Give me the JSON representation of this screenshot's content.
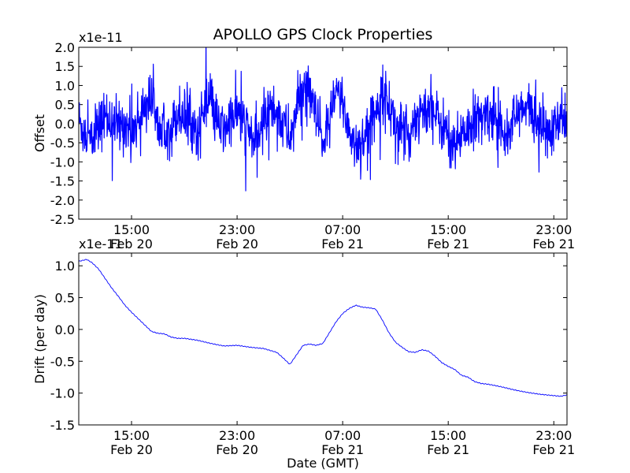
{
  "chart_data": [
    {
      "type": "line",
      "title": "APOLLO GPS Clock Properties",
      "ylabel": "Offset",
      "xlabel": "",
      "scale_label": "x1e-11",
      "ylim": [
        -2.5,
        2.0
      ],
      "xlim": [
        11.0,
        48.0
      ],
      "yticks": [
        -2.5,
        -2.0,
        -1.5,
        -1.0,
        -0.5,
        0.0,
        0.5,
        1.0,
        1.5,
        2.0
      ],
      "ytick_labels": [
        "-2.5",
        "-2.0",
        "-1.5",
        "-1.0",
        "-0.5",
        "0.0",
        "0.5",
        "1.0",
        "1.5",
        "2.0"
      ],
      "xticks": [
        15,
        23,
        31,
        39,
        47
      ],
      "xtick_labels": [
        [
          "15:00",
          "Feb 20"
        ],
        [
          "23:00",
          "Feb 20"
        ],
        [
          "07:00",
          "Feb 21"
        ],
        [
          "15:00",
          "Feb 21"
        ],
        [
          "23:00",
          "Feb 21"
        ]
      ],
      "series": [
        {
          "name": "offset",
          "color": "#0000ff",
          "noise_amp": 0.35,
          "x": [
            11.0,
            11.5,
            12.0,
            12.5,
            13.0,
            13.5,
            14.0,
            14.5,
            15.0,
            15.5,
            16.0,
            16.5,
            17.0,
            17.5,
            18.0,
            18.5,
            19.0,
            19.5,
            20.0,
            20.5,
            21.0,
            21.5,
            22.0,
            22.5,
            23.0,
            23.5,
            24.0,
            24.5,
            25.0,
            25.5,
            26.0,
            26.5,
            27.0,
            27.5,
            28.0,
            28.5,
            29.0,
            29.5,
            30.0,
            30.5,
            31.0,
            31.5,
            32.0,
            32.5,
            33.0,
            33.5,
            34.0,
            34.5,
            35.0,
            35.5,
            36.0,
            36.5,
            37.0,
            37.5,
            38.0,
            38.5,
            39.0,
            39.5,
            40.0,
            40.5,
            41.0,
            41.5,
            42.0,
            42.5,
            43.0,
            43.5,
            44.0,
            44.5,
            45.0,
            45.5,
            46.0,
            46.5,
            47.0,
            47.5,
            48.0
          ],
          "values": [
            0.1,
            -0.3,
            -0.5,
            -0.1,
            0.2,
            0.1,
            -0.1,
            0.0,
            -0.2,
            0.1,
            0.5,
            0.6,
            0.3,
            0.0,
            -0.2,
            0.3,
            0.2,
            0.1,
            -0.3,
            0.4,
            0.5,
            0.0,
            -0.2,
            0.1,
            0.3,
            0.0,
            -0.3,
            -0.5,
            0.1,
            0.4,
            0.3,
            0.0,
            -0.4,
            0.3,
            1.1,
            0.8,
            0.1,
            -0.5,
            0.0,
            0.8,
            0.6,
            -0.2,
            -0.6,
            -0.4,
            -0.2,
            0.4,
            0.8,
            0.5,
            0.0,
            -0.2,
            -0.4,
            0.2,
            0.4,
            0.3,
            0.2,
            0.0,
            -0.3,
            -0.6,
            -0.3,
            -0.1,
            0.0,
            0.1,
            0.3,
            0.2,
            0.0,
            -0.2,
            0.1,
            0.3,
            0.4,
            0.2,
            0.0,
            -0.3,
            -0.2,
            0.1,
            0.1
          ]
        }
      ]
    },
    {
      "type": "line",
      "title": "",
      "ylabel": "Drift (per day)",
      "xlabel": "Date (GMT)",
      "scale_label": "x1e-11",
      "ylim": [
        -1.5,
        1.2
      ],
      "xlim": [
        11.0,
        48.0
      ],
      "yticks": [
        -1.5,
        -1.0,
        -0.5,
        0.0,
        0.5,
        1.0
      ],
      "ytick_labels": [
        "-1.5",
        "-1.0",
        "-0.5",
        "0.0",
        "0.5",
        "1.0"
      ],
      "xticks": [
        15,
        23,
        31,
        39,
        47
      ],
      "xtick_labels": [
        [
          "15:00",
          "Feb 20"
        ],
        [
          "23:00",
          "Feb 20"
        ],
        [
          "07:00",
          "Feb 21"
        ],
        [
          "15:00",
          "Feb 21"
        ],
        [
          "23:00",
          "Feb 21"
        ]
      ],
      "series": [
        {
          "name": "drift",
          "color": "#0000ff",
          "noise_amp": 0.0,
          "x": [
            11.0,
            11.6,
            12.0,
            12.5,
            13.0,
            13.5,
            14.0,
            14.5,
            15.0,
            15.5,
            16.0,
            16.5,
            17.0,
            17.5,
            18.0,
            18.5,
            19.0,
            20.0,
            21.0,
            22.0,
            23.0,
            24.0,
            25.0,
            25.5,
            26.0,
            26.5,
            27.0,
            27.5,
            28.0,
            28.5,
            29.0,
            29.5,
            30.0,
            30.5,
            31.0,
            31.5,
            32.0,
            32.5,
            33.0,
            33.5,
            34.0,
            34.5,
            35.0,
            35.5,
            36.0,
            36.5,
            37.0,
            37.5,
            38.0,
            38.5,
            39.0,
            39.5,
            40.0,
            40.5,
            41.0,
            41.5,
            42.0,
            42.5,
            43.0,
            44.0,
            45.0,
            46.0,
            47.0,
            47.5,
            48.0
          ],
          "values": [
            1.07,
            1.1,
            1.05,
            0.95,
            0.8,
            0.65,
            0.52,
            0.38,
            0.27,
            0.17,
            0.07,
            -0.03,
            -0.06,
            -0.07,
            -0.12,
            -0.14,
            -0.14,
            -0.17,
            -0.22,
            -0.26,
            -0.25,
            -0.28,
            -0.3,
            -0.33,
            -0.36,
            -0.45,
            -0.55,
            -0.4,
            -0.25,
            -0.23,
            -0.25,
            -0.22,
            -0.05,
            0.12,
            0.25,
            0.33,
            0.38,
            0.35,
            0.34,
            0.32,
            0.15,
            -0.05,
            -0.2,
            -0.28,
            -0.35,
            -0.36,
            -0.32,
            -0.34,
            -0.42,
            -0.52,
            -0.58,
            -0.63,
            -0.72,
            -0.75,
            -0.82,
            -0.85,
            -0.86,
            -0.88,
            -0.9,
            -0.95,
            -0.99,
            -1.02,
            -1.04,
            -1.05,
            -1.03
          ]
        }
      ]
    }
  ]
}
